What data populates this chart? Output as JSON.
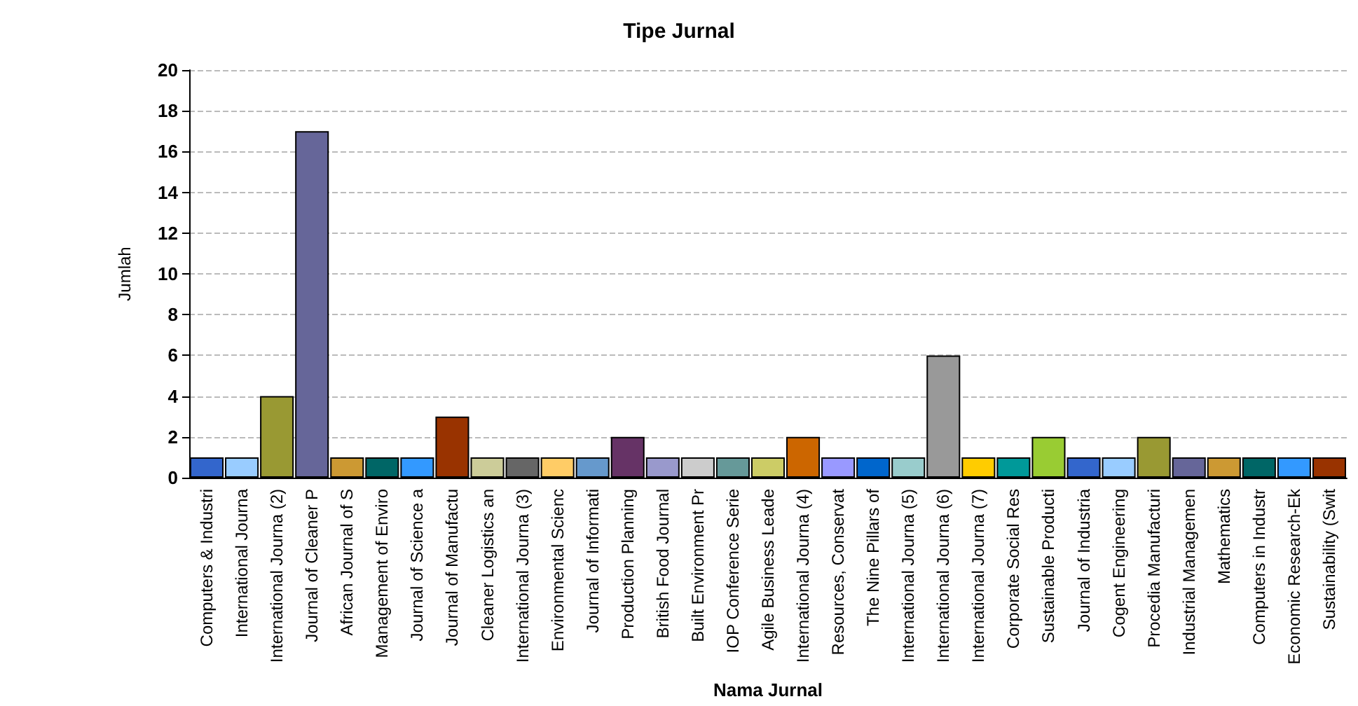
{
  "chart_data": {
    "type": "bar",
    "title": "Tipe Jurnal",
    "xlabel": "Nama Jurnal",
    "ylabel": "Jumlah",
    "categories": [
      "Computers & Industri",
      "International Journa",
      "International Journa (2)",
      "Journal of Cleaner P",
      "African Journal of S",
      "Management of Enviro",
      "Journal of Science a",
      "Journal of Manufactu",
      "Cleaner Logistics an",
      "International Journa (3)",
      "Environmental Scienc",
      "Journal of Informati",
      "Production Planning",
      "British Food Journal",
      "Built Environment Pr",
      "IOP Conference Serie",
      "Agile Business Leade",
      "International Journa (4)",
      "Resources, Conservat",
      "The Nine Pillars of",
      "International Journa (5)",
      "International Journa (6)",
      "International Journa (7)",
      "Corporate Social Res",
      "Sustainable Producti",
      "Journal of Industria",
      "Cogent Engineering",
      "Procedia Manufacturi",
      "Industrial Managemen",
      "Mathematics",
      "Computers in Industr",
      "Economic Research-Ek",
      "Sustainability (Swit"
    ],
    "values": [
      1,
      1,
      4,
      17,
      1,
      1,
      1,
      3,
      1,
      1,
      1,
      1,
      2,
      1,
      1,
      1,
      1,
      2,
      1,
      1,
      1,
      6,
      1,
      1,
      2,
      1,
      1,
      2,
      1,
      1,
      1,
      1,
      1
    ],
    "colors": [
      "#3366cc",
      "#99ccff",
      "#999933",
      "#666699",
      "#cc9933",
      "#006666",
      "#3399ff",
      "#993300",
      "#cccc99",
      "#666666",
      "#ffcc66",
      "#6699cc",
      "#663366",
      "#9999cc",
      "#cccccc",
      "#669999",
      "#cccc66",
      "#cc6600",
      "#9999ff",
      "#0066cc",
      "#99cccc",
      "#999999",
      "#ffcc00",
      "#009999",
      "#99cc33",
      "#3366cc",
      "#99ccff",
      "#999933",
      "#666699",
      "#cc9933",
      "#006666",
      "#3399ff",
      "#993300"
    ],
    "ylim": [
      0,
      20
    ],
    "yticks": [
      0,
      2,
      4,
      6,
      8,
      10,
      12,
      14,
      16,
      18,
      20
    ],
    "grid": "y"
  }
}
